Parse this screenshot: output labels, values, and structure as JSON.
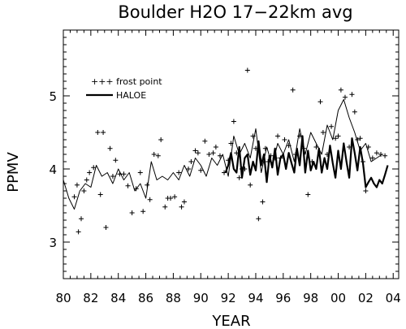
{
  "chart_data": {
    "type": "scatter",
    "title": "Boulder H2O   17−22km avg",
    "xlabel": "YEAR",
    "ylabel": "PPMV",
    "xlim": [
      1980,
      2004.4
    ],
    "ylim": [
      2.5,
      5.9
    ],
    "x_ticks": [
      {
        "value": 1980,
        "label": "80"
      },
      {
        "value": 1982,
        "label": "82"
      },
      {
        "value": 1984,
        "label": "84"
      },
      {
        "value": 1986,
        "label": "86"
      },
      {
        "value": 1988,
        "label": "88"
      },
      {
        "value": 1990,
        "label": "90"
      },
      {
        "value": 1992,
        "label": "92"
      },
      {
        "value": 1994,
        "label": "94"
      },
      {
        "value": 1996,
        "label": "96"
      },
      {
        "value": 1998,
        "label": "98"
      },
      {
        "value": 2000,
        "label": "00"
      },
      {
        "value": 2002,
        "label": "02"
      },
      {
        "value": 2004,
        "label": "04"
      }
    ],
    "y_ticks": [
      {
        "value": 3,
        "label": "3"
      },
      {
        "value": 4,
        "label": "4"
      },
      {
        "value": 5,
        "label": "5"
      }
    ],
    "legend": {
      "placement": "upper-left",
      "frost_label": "+++ frost point",
      "haloe_label": "HALOE"
    },
    "series": [
      {
        "name": "frost point",
        "style": "plus-markers",
        "color": "#000000",
        "points": [
          [
            1980.8,
            3.62
          ],
          [
            1981.0,
            3.78
          ],
          [
            1981.1,
            3.14
          ],
          [
            1981.3,
            3.32
          ],
          [
            1981.5,
            3.7
          ],
          [
            1981.7,
            3.85
          ],
          [
            1981.9,
            3.95
          ],
          [
            1982.2,
            4.02
          ],
          [
            1982.5,
            4.5
          ],
          [
            1982.7,
            3.65
          ],
          [
            1982.9,
            4.5
          ],
          [
            1983.1,
            3.2
          ],
          [
            1983.4,
            4.28
          ],
          [
            1983.6,
            3.9
          ],
          [
            1983.8,
            4.12
          ],
          [
            1984.1,
            3.93
          ],
          [
            1984.4,
            3.93
          ],
          [
            1984.7,
            3.77
          ],
          [
            1985.0,
            3.4
          ],
          [
            1985.3,
            3.73
          ],
          [
            1985.6,
            3.95
          ],
          [
            1985.8,
            3.42
          ],
          [
            1986.1,
            3.78
          ],
          [
            1986.3,
            3.58
          ],
          [
            1986.6,
            4.2
          ],
          [
            1986.9,
            4.18
          ],
          [
            1987.1,
            4.4
          ],
          [
            1987.4,
            3.48
          ],
          [
            1987.6,
            3.6
          ],
          [
            1987.8,
            3.6
          ],
          [
            1988.1,
            3.62
          ],
          [
            1988.4,
            3.95
          ],
          [
            1988.6,
            3.48
          ],
          [
            1988.8,
            3.55
          ],
          [
            1989.1,
            4.0
          ],
          [
            1989.3,
            4.1
          ],
          [
            1989.6,
            4.25
          ],
          [
            1989.8,
            4.22
          ],
          [
            1990.0,
            3.98
          ],
          [
            1990.3,
            4.38
          ],
          [
            1990.6,
            4.2
          ],
          [
            1990.9,
            4.22
          ],
          [
            1991.1,
            4.3
          ],
          [
            1991.4,
            4.18
          ],
          [
            1991.7,
            3.95
          ],
          [
            1992.0,
            4.12
          ],
          [
            1992.2,
            4.35
          ],
          [
            1992.4,
            4.65
          ],
          [
            1992.6,
            4.22
          ],
          [
            1992.8,
            3.88
          ],
          [
            1993.0,
            4.0
          ],
          [
            1993.2,
            4.0
          ],
          [
            1993.4,
            5.35
          ],
          [
            1993.6,
            3.78
          ],
          [
            1993.8,
            4.45
          ],
          [
            1994.0,
            4.28
          ],
          [
            1994.2,
            3.32
          ],
          [
            1994.5,
            3.55
          ],
          [
            1994.7,
            4.28
          ],
          [
            1994.9,
            4.1
          ],
          [
            1995.1,
            4.18
          ],
          [
            1995.4,
            4.15
          ],
          [
            1995.6,
            4.45
          ],
          [
            1995.8,
            4.15
          ],
          [
            1996.1,
            4.4
          ],
          [
            1996.4,
            4.32
          ],
          [
            1996.7,
            5.08
          ],
          [
            1996.9,
            4.2
          ],
          [
            1997.2,
            4.45
          ],
          [
            1997.5,
            4.28
          ],
          [
            1997.8,
            3.65
          ],
          [
            1998.1,
            4.1
          ],
          [
            1998.4,
            4.3
          ],
          [
            1998.7,
            4.92
          ],
          [
            1998.9,
            4.5
          ],
          [
            1999.2,
            4.2
          ],
          [
            1999.5,
            4.58
          ],
          [
            1999.8,
            4.42
          ],
          [
            2000.0,
            4.45
          ],
          [
            2000.2,
            5.08
          ],
          [
            2000.5,
            4.98
          ],
          [
            2000.8,
            4.3
          ],
          [
            2001.0,
            5.02
          ],
          [
            2001.2,
            4.78
          ],
          [
            2001.4,
            4.4
          ],
          [
            2001.6,
            4.42
          ],
          [
            2001.8,
            4.1
          ],
          [
            2002.0,
            3.7
          ],
          [
            2002.2,
            4.3
          ],
          [
            2002.5,
            4.15
          ],
          [
            2002.8,
            4.22
          ],
          [
            2003.1,
            4.2
          ],
          [
            2003.4,
            4.18
          ]
        ]
      },
      {
        "name": "HALOE",
        "style": "line",
        "color": "#000000",
        "x": [
          1991.8,
          1992.0,
          1992.2,
          1992.4,
          1992.6,
          1992.8,
          1993.0,
          1993.2,
          1993.4,
          1993.6,
          1993.8,
          1994.0,
          1994.2,
          1994.4,
          1994.6,
          1994.8,
          1995.0,
          1995.2,
          1995.4,
          1995.6,
          1995.8,
          1996.0,
          1996.2,
          1996.4,
          1996.6,
          1996.8,
          1997.0,
          1997.2,
          1997.4,
          1997.6,
          1997.8,
          1998.0,
          1998.2,
          1998.4,
          1998.6,
          1998.8,
          1999.0,
          1999.2,
          1999.4,
          1999.6,
          1999.8,
          2000.0,
          2000.2,
          2000.4,
          2000.6,
          2000.8,
          2001.0,
          2001.2,
          2001.4,
          2001.6,
          2001.8,
          2002.0,
          2002.2,
          2002.4,
          2002.6,
          2002.8,
          2003.0,
          2003.2,
          2003.4,
          2003.6
        ],
        "values": [
          3.95,
          4.05,
          4.22,
          4.0,
          3.95,
          4.3,
          3.88,
          4.15,
          4.2,
          3.92,
          4.1,
          3.98,
          4.38,
          4.05,
          4.2,
          3.82,
          4.18,
          4.02,
          4.28,
          3.92,
          4.15,
          4.2,
          4.0,
          4.22,
          4.08,
          3.95,
          4.28,
          4.05,
          4.45,
          3.95,
          4.25,
          3.98,
          4.1,
          4.0,
          4.28,
          3.95,
          4.15,
          4.0,
          4.32,
          4.08,
          3.88,
          4.25,
          4.0,
          4.35,
          4.1,
          3.88,
          4.42,
          4.22,
          3.98,
          4.3,
          4.08,
          3.75,
          3.82,
          3.88,
          3.8,
          3.75,
          3.85,
          3.8,
          3.92,
          4.05
        ]
      },
      {
        "name": "",
        "style": "thin-line",
        "color": "#000000",
        "x": [
          1980.0,
          1980.4,
          1980.8,
          1981.2,
          1981.6,
          1982.0,
          1982.4,
          1982.8,
          1983.2,
          1983.6,
          1984.0,
          1984.4,
          1984.8,
          1985.2,
          1985.6,
          1986.0,
          1986.4,
          1986.8,
          1987.2,
          1987.6,
          1988.0,
          1988.4,
          1988.8,
          1989.2,
          1989.6,
          1990.0,
          1990.4,
          1990.8,
          1991.2,
          1991.6,
          1992.0,
          1992.4,
          1992.8,
          1993.2,
          1993.6,
          1994.0,
          1994.4,
          1994.8,
          1995.2,
          1995.6,
          1996.0,
          1996.4,
          1996.8,
          1997.2,
          1997.6,
          1998.0,
          1998.4,
          1998.8,
          1999.2,
          1999.6,
          2000.0,
          2000.4,
          2000.8,
          2001.2,
          2001.6,
          2002.0,
          2002.4,
          2002.8,
          2003.2
        ],
        "values": [
          3.85,
          3.6,
          3.45,
          3.7,
          3.8,
          3.75,
          4.05,
          3.9,
          3.95,
          3.8,
          4.0,
          3.85,
          3.95,
          3.7,
          3.8,
          3.6,
          4.1,
          3.85,
          3.9,
          3.85,
          3.95,
          3.85,
          4.05,
          3.9,
          4.15,
          4.05,
          3.9,
          4.15,
          4.05,
          4.2,
          3.9,
          4.45,
          4.2,
          4.35,
          4.15,
          4.55,
          3.95,
          4.3,
          4.05,
          4.35,
          4.2,
          4.4,
          4.1,
          4.55,
          4.2,
          4.5,
          4.35,
          4.2,
          4.6,
          4.4,
          4.8,
          4.95,
          4.7,
          4.5,
          4.25,
          4.35,
          4.1,
          4.15,
          4.2
        ]
      }
    ]
  }
}
